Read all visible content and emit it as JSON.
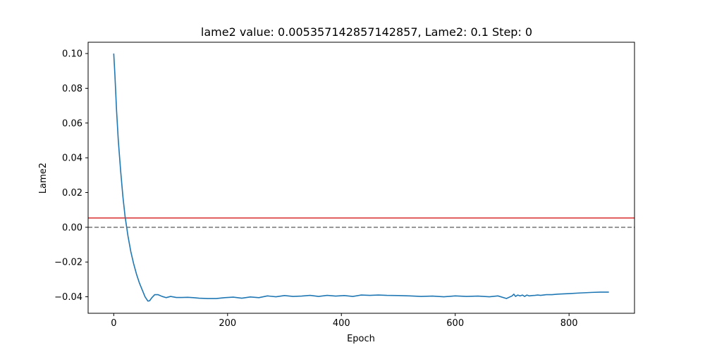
{
  "chart_data": {
    "type": "line",
    "title": "lame2 value: 0.005357142857142857, Lame2: 0.1 Step: 0",
    "xlabel": "Epoch",
    "ylabel": "Lame2",
    "xlim": [
      -45,
      915
    ],
    "ylim": [
      -0.0495,
      0.1065
    ],
    "xticks": [
      0,
      200,
      400,
      600,
      800
    ],
    "xtick_labels": [
      "0",
      "200",
      "400",
      "600",
      "800"
    ],
    "yticks": [
      -0.04,
      -0.02,
      0.0,
      0.02,
      0.04,
      0.06,
      0.08,
      0.1
    ],
    "ytick_labels": [
      "−0.04",
      "−0.02",
      "0.00",
      "0.02",
      "0.04",
      "0.06",
      "0.08",
      "0.10"
    ],
    "grid": false,
    "reference_lines": [
      {
        "y": 0.005357142857142857,
        "color": "#d62728",
        "style": "solid"
      },
      {
        "y": 0.0,
        "color": "#7f7f7f",
        "style": "dashed"
      }
    ],
    "series": [
      {
        "color": "#1f77b4",
        "x": [
          0,
          2,
          5,
          8,
          12,
          16,
          20,
          25,
          30,
          35,
          40,
          45,
          50,
          55,
          60,
          63,
          67,
          72,
          78,
          85,
          92,
          100,
          110,
          120,
          130,
          140,
          150,
          165,
          180,
          195,
          210,
          225,
          240,
          255,
          270,
          285,
          300,
          315,
          330,
          345,
          360,
          375,
          390,
          405,
          420,
          435,
          450,
          465,
          480,
          500,
          520,
          540,
          560,
          580,
          600,
          620,
          640,
          660,
          675,
          690,
          700,
          703,
          706,
          710,
          714,
          718,
          722,
          726,
          730,
          735,
          740,
          745,
          750,
          760,
          770,
          780,
          800,
          820,
          840,
          855,
          870
        ],
        "y": [
          0.1,
          0.088,
          0.067,
          0.05,
          0.033,
          0.018,
          0.006,
          -0.005,
          -0.014,
          -0.021,
          -0.027,
          -0.032,
          -0.036,
          -0.04,
          -0.0425,
          -0.0423,
          -0.0405,
          -0.0388,
          -0.0388,
          -0.0398,
          -0.0405,
          -0.0398,
          -0.0404,
          -0.0404,
          -0.0403,
          -0.0405,
          -0.0408,
          -0.041,
          -0.041,
          -0.0405,
          -0.0402,
          -0.0408,
          -0.0401,
          -0.0405,
          -0.0395,
          -0.04,
          -0.0393,
          -0.0398,
          -0.0396,
          -0.0392,
          -0.0398,
          -0.0392,
          -0.0396,
          -0.0393,
          -0.0398,
          -0.039,
          -0.0392,
          -0.039,
          -0.0392,
          -0.0393,
          -0.0395,
          -0.0398,
          -0.0396,
          -0.04,
          -0.0395,
          -0.0398,
          -0.0396,
          -0.04,
          -0.0395,
          -0.041,
          -0.0395,
          -0.0385,
          -0.0398,
          -0.039,
          -0.0395,
          -0.039,
          -0.0398,
          -0.039,
          -0.0395,
          -0.0393,
          -0.0392,
          -0.039,
          -0.0392,
          -0.0388,
          -0.0388,
          -0.0385,
          -0.0382,
          -0.0378,
          -0.0375,
          -0.0373,
          -0.0373
        ]
      }
    ]
  }
}
